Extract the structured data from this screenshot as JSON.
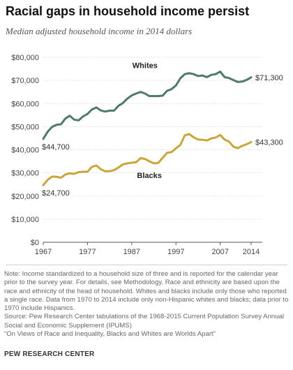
{
  "title": "Racial gaps in household income persist",
  "subtitle": "Median adjusted household income in 2014 dollars",
  "chart_data": {
    "type": "line",
    "x": [
      1967,
      1968,
      1969,
      1970,
      1971,
      1972,
      1973,
      1974,
      1975,
      1976,
      1977,
      1978,
      1979,
      1980,
      1981,
      1982,
      1983,
      1984,
      1985,
      1986,
      1987,
      1988,
      1989,
      1990,
      1991,
      1992,
      1993,
      1994,
      1995,
      1996,
      1997,
      1998,
      1999,
      2000,
      2001,
      2002,
      2003,
      2004,
      2005,
      2006,
      2007,
      2008,
      2009,
      2010,
      2011,
      2012,
      2013,
      2014
    ],
    "series": [
      {
        "name": "Whites",
        "color": "#4e7a6b",
        "values": [
          44700,
          47800,
          49900,
          50800,
          51000,
          53500,
          54700,
          53000,
          52700,
          54400,
          55500,
          57400,
          58300,
          57000,
          56500,
          56900,
          56900,
          59000,
          60200,
          62100,
          63500,
          64300,
          65000,
          64300,
          63200,
          63200,
          63200,
          63400,
          65500,
          66200,
          67800,
          70900,
          72700,
          73100,
          72700,
          71900,
          72100,
          71400,
          72400,
          72700,
          73800,
          71400,
          71000,
          70100,
          69300,
          69500,
          70200,
          71300
        ]
      },
      {
        "name": "Blacks",
        "color": "#c9a53a",
        "values": [
          24700,
          27000,
          28400,
          28300,
          27900,
          29300,
          29800,
          29600,
          30300,
          30500,
          30500,
          32600,
          33200,
          31600,
          30700,
          30700,
          31200,
          32300,
          33700,
          34100,
          34400,
          34600,
          36400,
          36000,
          35000,
          34100,
          34300,
          36500,
          38700,
          39000,
          40600,
          42100,
          46200,
          46800,
          45400,
          44400,
          44300,
          44000,
          44900,
          45300,
          46400,
          44400,
          43500,
          41300,
          40700,
          41700,
          42400,
          43300
        ]
      }
    ],
    "series_labels": [
      "Whites",
      "Blacks"
    ],
    "start_labels": [
      "$44,700",
      "$24,700"
    ],
    "end_labels": [
      "$71,300",
      "$43,300"
    ],
    "ylim": [
      0,
      80000
    ],
    "yticks": [
      0,
      10000,
      20000,
      30000,
      40000,
      50000,
      60000,
      70000,
      80000
    ],
    "ytick_labels": [
      "$0",
      "$10,000",
      "$20,000",
      "$30,000",
      "$40,000",
      "$50,000",
      "$60,000",
      "$70,000",
      "$80,000"
    ],
    "xticks": [
      1967,
      1977,
      1987,
      1997,
      2007,
      2014
    ],
    "xtick_labels": [
      "1967",
      "1977",
      "1987",
      "1997",
      "2007",
      "2014"
    ],
    "grid": "horizontal"
  },
  "notes": [
    "Note: Income standardized to a household size of three and is reported for the calendar year prior to the survey year. For details, see Methodology. Race and ethnicity are based upon the race and ethnicity of the head of household. Whites and blacks include only those who reported a single race. Data from 1970 to 2014 include only non-Hispanic whites and blacks; data prior to 1970 include Hispanics.",
    "Source: Pew Research Center tabulations of the 1968-2015 Current Population Survey Annual Social and Economic Supplement (IPUMS)",
    "“On Views of Race and Inequality, Blacks and Whites are Worlds Apart”"
  ],
  "footer": "PEW RESEARCH CENTER"
}
